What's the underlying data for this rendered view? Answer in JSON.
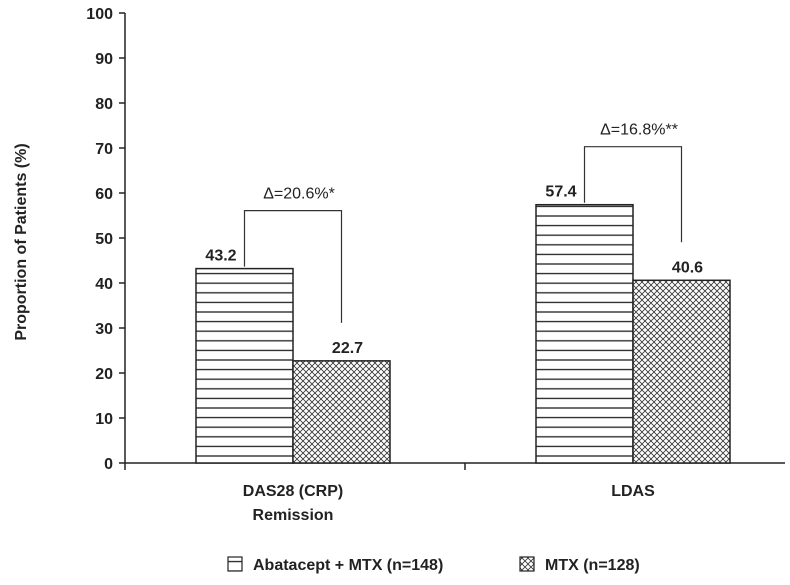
{
  "chart_data": {
    "type": "bar",
    "categories": [
      [
        "DAS28 (CRP)",
        "Remission"
      ],
      [
        "LDAS"
      ]
    ],
    "series": [
      {
        "name": "Abatacept + MTX (n=148)",
        "values": [
          43.2,
          57.4
        ],
        "pattern": "horizontal-lines"
      },
      {
        "name": "MTX (n=128)",
        "values": [
          22.7,
          40.6
        ],
        "pattern": "crosshatch"
      }
    ],
    "value_labels": [
      [
        "43.2",
        "57.4"
      ],
      [
        "22.7",
        "40.6"
      ]
    ],
    "annotations": [
      {
        "category_index": 0,
        "text": "Δ=20.6%*"
      },
      {
        "category_index": 1,
        "text": "Δ=16.8%**"
      }
    ],
    "title": "",
    "xlabel": "",
    "ylabel": "Proportion of Patients (%)",
    "ylim": [
      0,
      100
    ],
    "yticks": [
      0,
      10,
      20,
      30,
      40,
      50,
      60,
      70,
      80,
      90,
      100
    ],
    "grid": false,
    "legend_position": "bottom"
  }
}
